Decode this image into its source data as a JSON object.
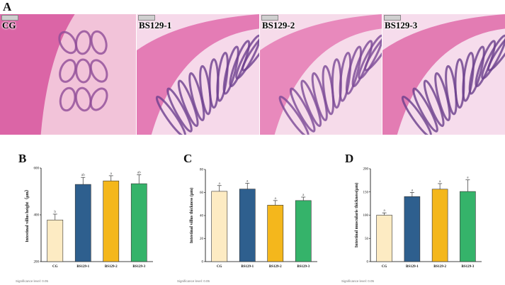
{
  "panelA": {
    "letter": "A",
    "images": [
      {
        "label": "CG",
        "bg": "#f2c3d9",
        "tissue": "#d7559c",
        "villus": "#8f4c97"
      },
      {
        "label": "BS129-1",
        "bg": "#f6d9ea",
        "tissue": "#e06bab",
        "villus": "#6d3f8f"
      },
      {
        "label": "BS129-2",
        "bg": "#f6dbea",
        "tissue": "#e57ab4",
        "villus": "#7a4896"
      },
      {
        "label": "BS129-3",
        "bg": "#f6dcec",
        "tissue": "#df6ba9",
        "villus": "#6a3f8c"
      }
    ]
  },
  "significance_note": "Significance level: 0.05",
  "chart_data": [
    {
      "letter": "B",
      "type": "bar",
      "categories": [
        "CG",
        "BS129-1",
        "BS129-2",
        "BS129-3"
      ],
      "values": [
        378,
        530,
        545,
        533
      ],
      "errors": [
        25,
        30,
        22,
        38
      ],
      "letters": [
        "b",
        "ab",
        "a",
        "ab"
      ],
      "ylabel": "Intestinal villus height（μm）",
      "ylim": [
        200,
        600
      ],
      "yticks": [
        200,
        400,
        600
      ],
      "colors": [
        "#fdebc3",
        "#2e5f8e",
        "#f4b71c",
        "#35b36a"
      ]
    },
    {
      "letter": "C",
      "type": "bar",
      "categories": [
        "CG",
        "BS129-1",
        "BS129-2",
        "BS129-3"
      ],
      "values": [
        61,
        63,
        49,
        53
      ],
      "errors": [
        5,
        5,
        4,
        3
      ],
      "letters": [
        "a",
        "a",
        "a",
        "a"
      ],
      "ylabel": "Intestinal villus thickness (μm)",
      "ylim": [
        0,
        80
      ],
      "yticks": [
        0,
        20,
        40,
        60,
        80
      ],
      "colors": [
        "#fdebc3",
        "#2e5f8e",
        "#f4b71c",
        "#35b36a"
      ]
    },
    {
      "letter": "D",
      "type": "bar",
      "categories": [
        "CG",
        "BS129-1",
        "BS129-2",
        "BS129-3"
      ],
      "values": [
        100,
        140,
        156,
        151
      ],
      "errors": [
        5,
        9,
        12,
        25
      ],
      "letters": [
        "a",
        "a",
        "a",
        "a"
      ],
      "ylabel": "Intestinal muscularis thickness(μm)",
      "ylim": [
        0,
        200
      ],
      "yticks": [
        0,
        50,
        100,
        150,
        200
      ],
      "colors": [
        "#fdebc3",
        "#2e5f8e",
        "#f4b71c",
        "#35b36a"
      ]
    }
  ]
}
